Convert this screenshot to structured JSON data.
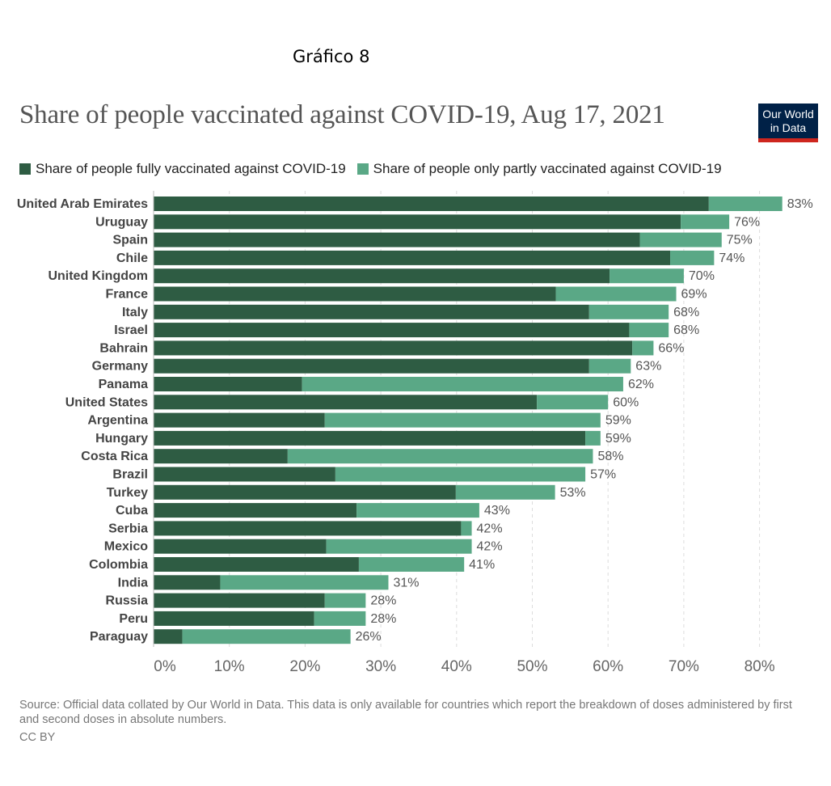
{
  "header_label": "Gráfico 8",
  "title": "Share of people vaccinated against COVID-19, Aug 17, 2021",
  "logo": {
    "line1": "Our World",
    "line2": "in Data"
  },
  "colors": {
    "fully": "#2e5c43",
    "partly": "#5aa886",
    "grid": "#dddddd",
    "label": "#444444",
    "value": "#555555",
    "axis": "#666666"
  },
  "legend": {
    "fully": "Share of people fully vaccinated against COVID-19",
    "partly": "Share of people only partly vaccinated against COVID-19"
  },
  "source": "Source: Official data collated by Our World in Data. This data is only available for countries which report the breakdown of doses administered by first and second doses in absolute numbers.",
  "license": "CC BY",
  "chart_data": {
    "type": "bar",
    "orientation": "horizontal",
    "stacked": true,
    "title": "Share of people vaccinated against COVID-19, Aug 17, 2021",
    "categories": [
      "United Arab Emirates",
      "Uruguay",
      "Spain",
      "Chile",
      "United Kingdom",
      "France",
      "Italy",
      "Israel",
      "Bahrain",
      "Germany",
      "Panama",
      "United States",
      "Argentina",
      "Hungary",
      "Costa Rica",
      "Brazil",
      "Turkey",
      "Cuba",
      "Serbia",
      "Mexico",
      "Colombia",
      "India",
      "Russia",
      "Peru",
      "Paraguay"
    ],
    "series": [
      {
        "name": "Share of people fully vaccinated against COVID-19",
        "values": [
          73.3,
          69.6,
          64.2,
          68.2,
          60.2,
          53.1,
          57.5,
          62.8,
          63.2,
          57.5,
          19.6,
          50.6,
          22.6,
          57.0,
          17.7,
          24.0,
          39.9,
          26.8,
          40.6,
          22.8,
          27.1,
          8.8,
          22.6,
          21.2,
          3.8
        ]
      },
      {
        "name": "Share of people only partly vaccinated against COVID-19",
        "values": [
          9.7,
          6.4,
          10.8,
          5.8,
          9.8,
          15.9,
          10.5,
          5.2,
          2.8,
          5.5,
          42.4,
          9.4,
          36.4,
          2.0,
          40.3,
          33.0,
          13.1,
          16.2,
          1.4,
          19.2,
          13.9,
          22.2,
          5.4,
          6.8,
          22.2
        ]
      }
    ],
    "totals_labels": [
      "83%",
      "76%",
      "75%",
      "74%",
      "70%",
      "69%",
      "68%",
      "68%",
      "66%",
      "63%",
      "62%",
      "60%",
      "59%",
      "59%",
      "58%",
      "57%",
      "53%",
      "43%",
      "42%",
      "42%",
      "41%",
      "31%",
      "28%",
      "28%",
      "26%"
    ],
    "x_ticks": [
      "0%",
      "10%",
      "20%",
      "30%",
      "40%",
      "50%",
      "60%",
      "70%",
      "80%"
    ],
    "xlim": [
      0,
      83
    ],
    "grid": true,
    "legend_position": "top-left"
  }
}
